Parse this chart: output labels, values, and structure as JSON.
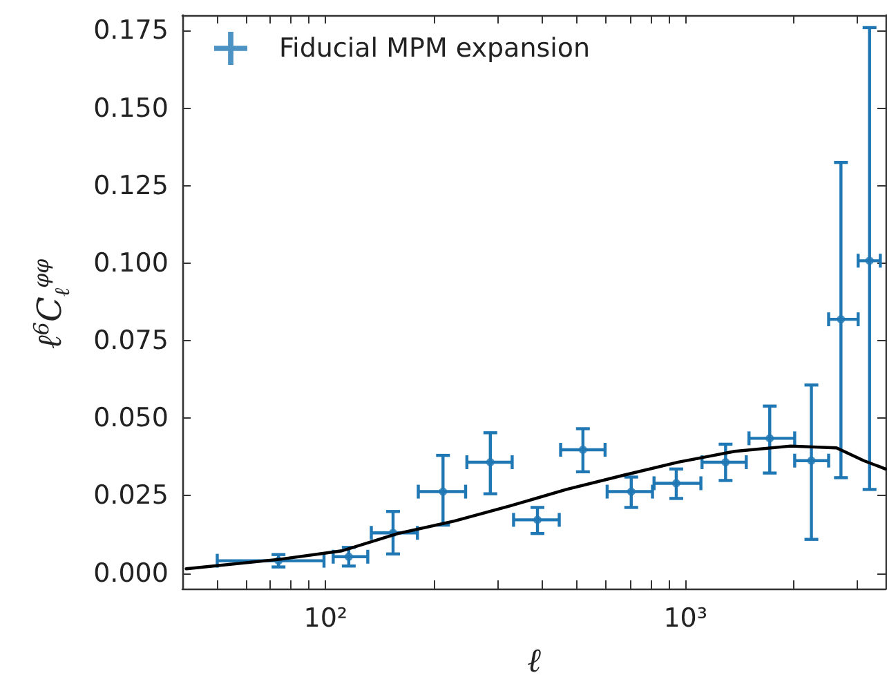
{
  "chart_data": {
    "type": "scatter",
    "xlabel": "ℓ",
    "ylabel": "ℓ$^{6}$C$_{ℓ}$$^{φφ}$",
    "log": "x",
    "xlim": [
      40,
      3600
    ],
    "xticks": [
      {
        "value": 40,
        "label": null
      },
      {
        "value": 50,
        "label": null
      },
      {
        "value": 60,
        "label": null
      },
      {
        "value": 70,
        "label": null
      },
      {
        "value": 80,
        "label": null
      },
      {
        "value": 90,
        "label": null
      },
      {
        "value": 100,
        "label": "10²"
      },
      {
        "value": 200,
        "label": null
      },
      {
        "value": 300,
        "label": null
      },
      {
        "value": 400,
        "label": null
      },
      {
        "value": 500,
        "label": null
      },
      {
        "value": 600,
        "label": null
      },
      {
        "value": 700,
        "label": null
      },
      {
        "value": 800,
        "label": null
      },
      {
        "value": 900,
        "label": null
      },
      {
        "value": 1000,
        "label": "10³"
      },
      {
        "value": 2000,
        "label": null
      },
      {
        "value": 3000,
        "label": null
      }
    ],
    "ylim": [
      -0.005,
      0.18
    ],
    "yticks": [
      {
        "value": 0,
        "label": "0.000"
      },
      {
        "value": 0.025,
        "label": "0.025"
      },
      {
        "value": 0.05,
        "label": "0.050"
      },
      {
        "value": 0.075,
        "label": "0.075"
      },
      {
        "value": 0.1,
        "label": "0.100"
      },
      {
        "value": 0.125,
        "label": "0.125"
      },
      {
        "value": 0.15,
        "label": "0.150"
      },
      {
        "value": 0.175,
        "label": "0.175"
      }
    ],
    "grid": false,
    "legend": "top left",
    "series": [
      {
        "name": "Fiducial MPM expansion",
        "color": "#1f77b4",
        "marker": "circle",
        "x": [
          74,
          116,
          154,
          212,
          287,
          388,
          519,
          707,
          943,
          1293,
          1715,
          2239,
          2705,
          3248
        ],
        "values": [
          0.004,
          0.0053,
          0.013,
          0.0263,
          0.0358,
          0.0172,
          0.0398,
          0.0263,
          0.029,
          0.0358,
          0.0435,
          0.0363,
          0.0819,
          0.1008
        ],
        "errors": [
          [
            0.002,
            0.006
          ],
          [
            0.0023,
            0.0083
          ],
          [
            0.0062,
            0.0199
          ],
          [
            0.0155,
            0.038
          ],
          [
            0.0256,
            0.0453
          ],
          [
            0.0128,
            0.0212
          ],
          [
            0.0327,
            0.0466
          ],
          [
            0.0212,
            0.031
          ],
          [
            0.0241,
            0.0336
          ],
          [
            0.0299,
            0.0416
          ],
          [
            0.0323,
            0.0539
          ],
          [
            0.0109,
            0.0607
          ],
          [
            0.0308,
            0.1325
          ],
          [
            0.027,
            0.176
          ]
        ],
        "xerrors": [
          [
            50,
            99
          ],
          [
            105,
            131
          ],
          [
            134,
            180
          ],
          [
            181,
            245
          ],
          [
            247,
            330
          ],
          [
            333,
            446
          ],
          [
            450,
            598
          ],
          [
            606,
            810
          ],
          [
            818,
            1104
          ],
          [
            1112,
            1476
          ],
          [
            1502,
            2012
          ],
          [
            2012,
            2500
          ],
          [
            2500,
            3020
          ],
          [
            3020,
            3480
          ]
        ]
      },
      {
        "type": "line",
        "color": "#000000",
        "marker": "none",
        "x": [
          41,
          75,
          111,
          159,
          228,
          326,
          467,
          668,
          955,
          1370,
          1960,
          2630,
          3130,
          3600
        ],
        "values": [
          0.0014,
          0.0045,
          0.0072,
          0.0128,
          0.0168,
          0.0217,
          0.027,
          0.0315,
          0.0358,
          0.0393,
          0.041,
          0.0404,
          0.0363,
          0.0336
        ]
      }
    ]
  }
}
